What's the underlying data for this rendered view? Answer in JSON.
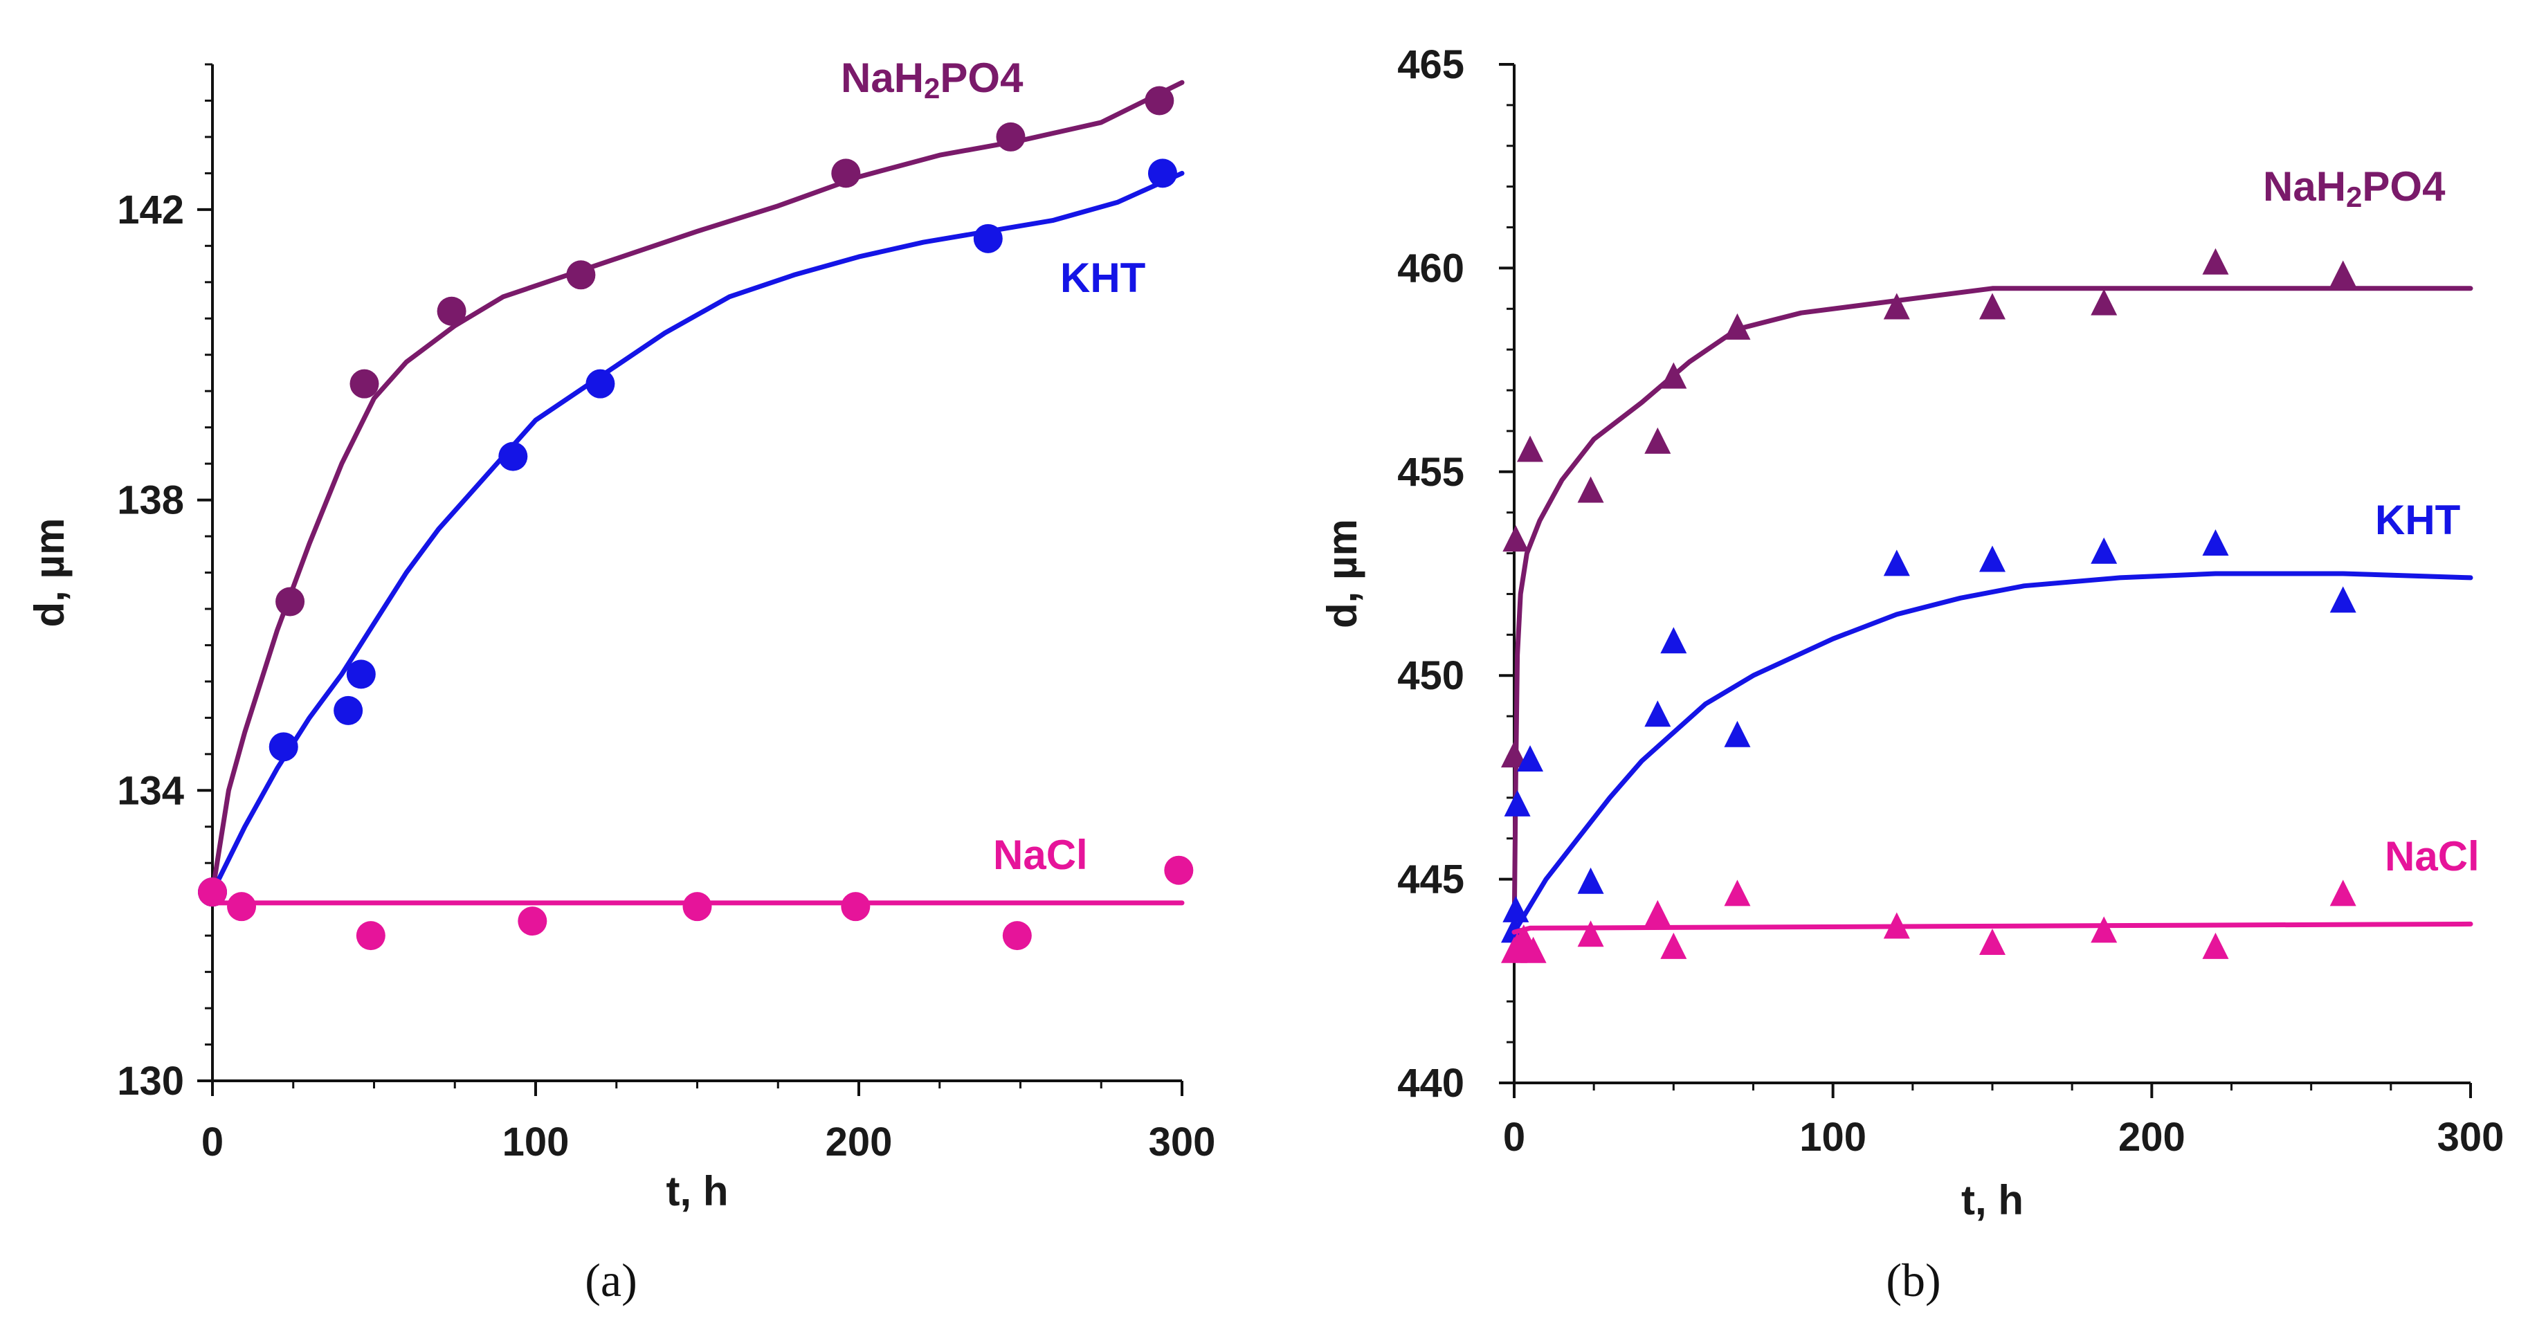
{
  "chart_data": [
    {
      "id": "a",
      "type": "scatter",
      "caption": "(a)",
      "xlabel": "t, h",
      "ylabel": "d, µm",
      "xlim": [
        0,
        300
      ],
      "ylim": [
        130,
        144
      ],
      "xticks": [
        0,
        100,
        200,
        300
      ],
      "yticks": [
        130,
        134,
        138,
        142
      ],
      "ytick_labels": [
        "130",
        "134",
        "138",
        "142"
      ],
      "xtick_labels": [
        "0",
        "100",
        "200",
        "300"
      ],
      "marker": "circle",
      "series": [
        {
          "name": "NaH2PO4",
          "label_main": "NaH",
          "label_sub": "2",
          "label_tail": "PO4",
          "color": "#7a1a6a",
          "points": [
            [
              0,
              132.6
            ],
            [
              24,
              136.6
            ],
            [
              47,
              139.6
            ],
            [
              74,
              140.6
            ],
            [
              114,
              141.1
            ],
            [
              196,
              142.5
            ],
            [
              247,
              143.0
            ],
            [
              293,
              143.5
            ]
          ],
          "curve": [
            [
              0,
              132.6
            ],
            [
              5,
              134.0
            ],
            [
              10,
              134.8
            ],
            [
              20,
              136.2
            ],
            [
              30,
              137.4
            ],
            [
              40,
              138.5
            ],
            [
              50,
              139.4
            ],
            [
              60,
              139.9
            ],
            [
              75,
              140.4
            ],
            [
              90,
              140.8
            ],
            [
              110,
              141.1
            ],
            [
              130,
              141.4
            ],
            [
              150,
              141.7
            ],
            [
              175,
              142.05
            ],
            [
              200,
              142.45
            ],
            [
              225,
              142.75
            ],
            [
              250,
              142.95
            ],
            [
              275,
              143.2
            ],
            [
              300,
              143.75
            ]
          ]
        },
        {
          "name": "KHT",
          "label_main": "KHT",
          "label_sub": "",
          "label_tail": "",
          "color": "#1414e6",
          "points": [
            [
              0,
              132.6
            ],
            [
              22,
              134.6
            ],
            [
              42,
              135.1
            ],
            [
              46,
              135.6
            ],
            [
              93,
              138.6
            ],
            [
              120,
              139.6
            ],
            [
              240,
              141.6
            ],
            [
              294,
              142.5
            ]
          ],
          "curve": [
            [
              0,
              132.6
            ],
            [
              10,
              133.5
            ],
            [
              20,
              134.3
            ],
            [
              30,
              135.0
            ],
            [
              40,
              135.6
            ],
            [
              50,
              136.3
            ],
            [
              60,
              137.0
            ],
            [
              70,
              137.6
            ],
            [
              80,
              138.1
            ],
            [
              90,
              138.6
            ],
            [
              100,
              139.1
            ],
            [
              120,
              139.7
            ],
            [
              140,
              140.3
            ],
            [
              160,
              140.8
            ],
            [
              180,
              141.1
            ],
            [
              200,
              141.35
            ],
            [
              220,
              141.55
            ],
            [
              240,
              141.7
            ],
            [
              260,
              141.85
            ],
            [
              280,
              142.1
            ],
            [
              300,
              142.5
            ]
          ]
        },
        {
          "name": "NaCl",
          "label_main": "NaCl",
          "label_sub": "",
          "label_tail": "",
          "color": "#e6149a",
          "points": [
            [
              0,
              132.6
            ],
            [
              9,
              132.4
            ],
            [
              49,
              132.0
            ],
            [
              99,
              132.2
            ],
            [
              150,
              132.4
            ],
            [
              199,
              132.4
            ],
            [
              249,
              132.0
            ],
            [
              299,
              132.9
            ]
          ],
          "curve": [
            [
              0,
              132.45
            ],
            [
              300,
              132.45
            ]
          ]
        }
      ]
    },
    {
      "id": "b",
      "type": "scatter",
      "caption": "(b)",
      "xlabel": "t, h",
      "ylabel": "d, µm",
      "xlim": [
        0,
        300
      ],
      "ylim": [
        440,
        465
      ],
      "xticks": [
        0,
        100,
        200,
        300
      ],
      "yticks": [
        440,
        445,
        450,
        455,
        460,
        465
      ],
      "ytick_labels": [
        "440",
        "445",
        "450",
        "455",
        "460",
        "465"
      ],
      "xtick_labels": [
        "0",
        "100",
        "200",
        "300"
      ],
      "marker": "triangle",
      "series": [
        {
          "name": "NaH2PO4",
          "label_main": "NaH",
          "label_sub": "2",
          "label_tail": "PO4",
          "color": "#7a1a6a",
          "points": [
            [
              0,
              448.0
            ],
            [
              0.5,
              453.3
            ],
            [
              5,
              455.5
            ],
            [
              24,
              454.5
            ],
            [
              45,
              455.7
            ],
            [
              50,
              457.3
            ],
            [
              70,
              458.5
            ],
            [
              120,
              459.0
            ],
            [
              150,
              459.0
            ],
            [
              185,
              459.1
            ],
            [
              220,
              460.1
            ],
            [
              260,
              459.8
            ]
          ],
          "curve": [
            [
              0,
              443.6
            ],
            [
              0.5,
              447.5
            ],
            [
              1,
              450.5
            ],
            [
              2,
              452.0
            ],
            [
              4,
              453.0
            ],
            [
              8,
              453.8
            ],
            [
              15,
              454.8
            ],
            [
              25,
              455.8
            ],
            [
              40,
              456.7
            ],
            [
              55,
              457.7
            ],
            [
              70,
              458.5
            ],
            [
              90,
              458.9
            ],
            [
              120,
              459.2
            ],
            [
              150,
              459.5
            ],
            [
              200,
              459.5
            ],
            [
              300,
              459.5
            ]
          ]
        },
        {
          "name": "KHT",
          "label_main": "KHT",
          "label_sub": "",
          "label_tail": "",
          "color": "#1414e6",
          "points": [
            [
              0,
              443.7
            ],
            [
              0.5,
              444.2
            ],
            [
              1,
              446.8
            ],
            [
              5,
              447.9
            ],
            [
              24,
              444.9
            ],
            [
              45,
              449.0
            ],
            [
              50,
              450.8
            ],
            [
              70,
              448.5
            ],
            [
              120,
              452.7
            ],
            [
              150,
              452.8
            ],
            [
              185,
              453.0
            ],
            [
              220,
              453.2
            ],
            [
              260,
              451.8
            ]
          ],
          "curve": [
            [
              0,
              443.7
            ],
            [
              10,
              445.0
            ],
            [
              20,
              446.0
            ],
            [
              30,
              447.0
            ],
            [
              40,
              447.9
            ],
            [
              50,
              448.6
            ],
            [
              60,
              449.3
            ],
            [
              75,
              450.0
            ],
            [
              100,
              450.9
            ],
            [
              120,
              451.5
            ],
            [
              140,
              451.9
            ],
            [
              160,
              452.2
            ],
            [
              190,
              452.4
            ],
            [
              220,
              452.5
            ],
            [
              260,
              452.5
            ],
            [
              300,
              452.4
            ]
          ]
        },
        {
          "name": "NaCl",
          "label_main": "NaCl",
          "label_sub": "",
          "label_tail": "",
          "color": "#e6149a",
          "points": [
            [
              0,
              443.2
            ],
            [
              1,
              443.3
            ],
            [
              3,
              443.5
            ],
            [
              6,
              443.2
            ],
            [
              24,
              443.6
            ],
            [
              45,
              444.1
            ],
            [
              50,
              443.3
            ],
            [
              70,
              444.6
            ],
            [
              120,
              443.8
            ],
            [
              150,
              443.4
            ],
            [
              185,
              443.7
            ],
            [
              220,
              443.3
            ],
            [
              260,
              444.6
            ]
          ],
          "curve": [
            [
              0,
              443.7
            ],
            [
              5,
              443.8
            ],
            [
              300,
              443.9
            ]
          ]
        }
      ]
    }
  ]
}
